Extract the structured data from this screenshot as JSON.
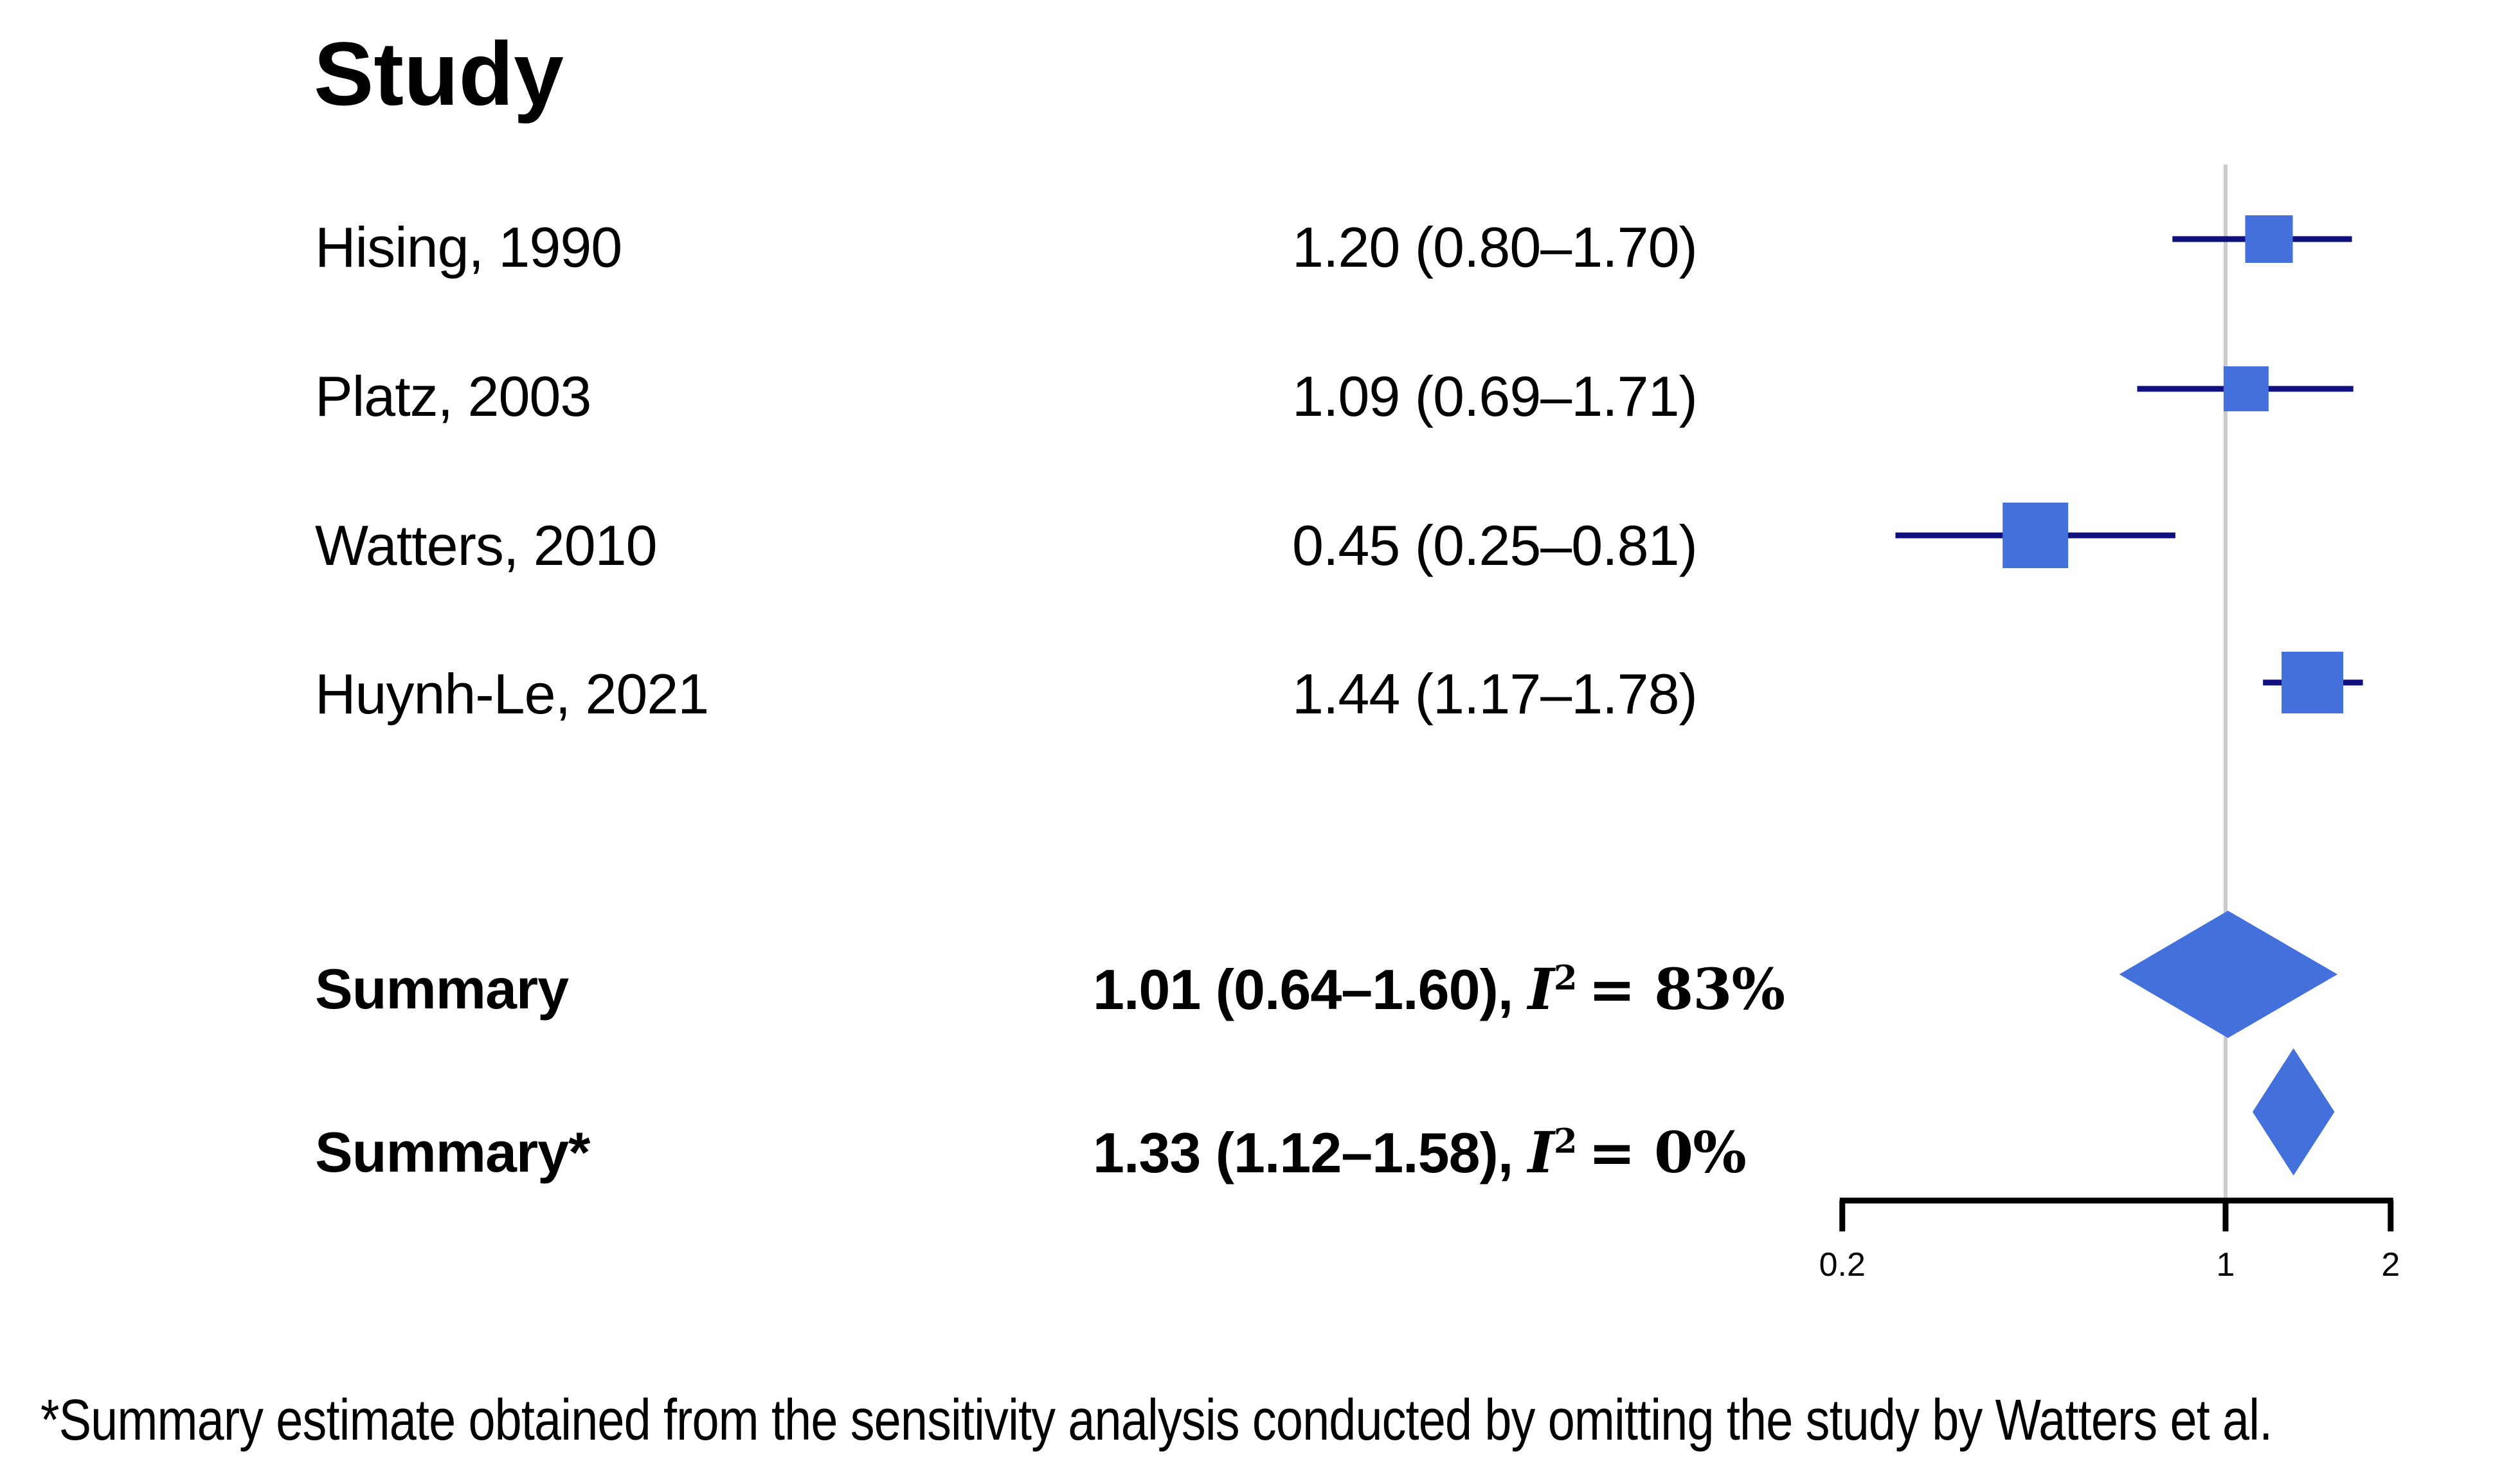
{
  "header": {
    "study_column": "Study"
  },
  "footnote": "*Summary estimate obtained from the sensitivity analysis conducted by omitting the study by Watters et al.",
  "colors": {
    "marker_blue": "#4470DB",
    "ci_line_navy": "#10107E",
    "reference_gray": "#CBCBCB",
    "axis_black": "#000000",
    "text_black": "#000000"
  },
  "chart_data": {
    "type": "scatter",
    "subtype": "forest-plot",
    "title": "Study",
    "x_axis": {
      "scale": "log",
      "range": [
        0.2,
        2
      ],
      "ticks": [
        0.2,
        1,
        2
      ],
      "tick_labels": [
        "0.2",
        "1",
        "2"
      ],
      "reference_line_value": 1,
      "grid": false
    },
    "studies": [
      {
        "label": "Hising, 1990",
        "estimate": 1.2,
        "ci_lower": 0.8,
        "ci_upper": 1.7,
        "ci_text": "1.20 (0.80–1.70)",
        "marker_px": 74
      },
      {
        "label": "Platz, 2003",
        "estimate": 1.09,
        "ci_lower": 0.69,
        "ci_upper": 1.71,
        "ci_text": "1.09 (0.69–1.71)",
        "marker_px": 70
      },
      {
        "label": "Watters, 2010",
        "estimate": 0.45,
        "ci_lower": 0.25,
        "ci_upper": 0.81,
        "ci_text": "0.45 (0.25–0.81)",
        "marker_px": 102
      },
      {
        "label": "Huynh-Le, 2021",
        "estimate": 1.44,
        "ci_lower": 1.17,
        "ci_upper": 1.78,
        "ci_text": "1.44 (1.17–1.78)",
        "marker_px": 96
      }
    ],
    "summaries": [
      {
        "label": "Summary",
        "estimate": 1.01,
        "ci_lower": 0.64,
        "ci_upper": 1.6,
        "i_squared_pct": 83,
        "ci_text": "1.01 (0.64–1.60),",
        "i_symbol": "I",
        "i_sup": "2",
        "i2_rest": "= 83%"
      },
      {
        "label": "Summary*",
        "estimate": 1.33,
        "ci_lower": 1.12,
        "ci_upper": 1.58,
        "i_squared_pct": 0,
        "ci_text": "1.33 (1.12–1.58),",
        "i_symbol": "I",
        "i_sup": "2",
        "i2_rest": "= 0%"
      }
    ]
  }
}
